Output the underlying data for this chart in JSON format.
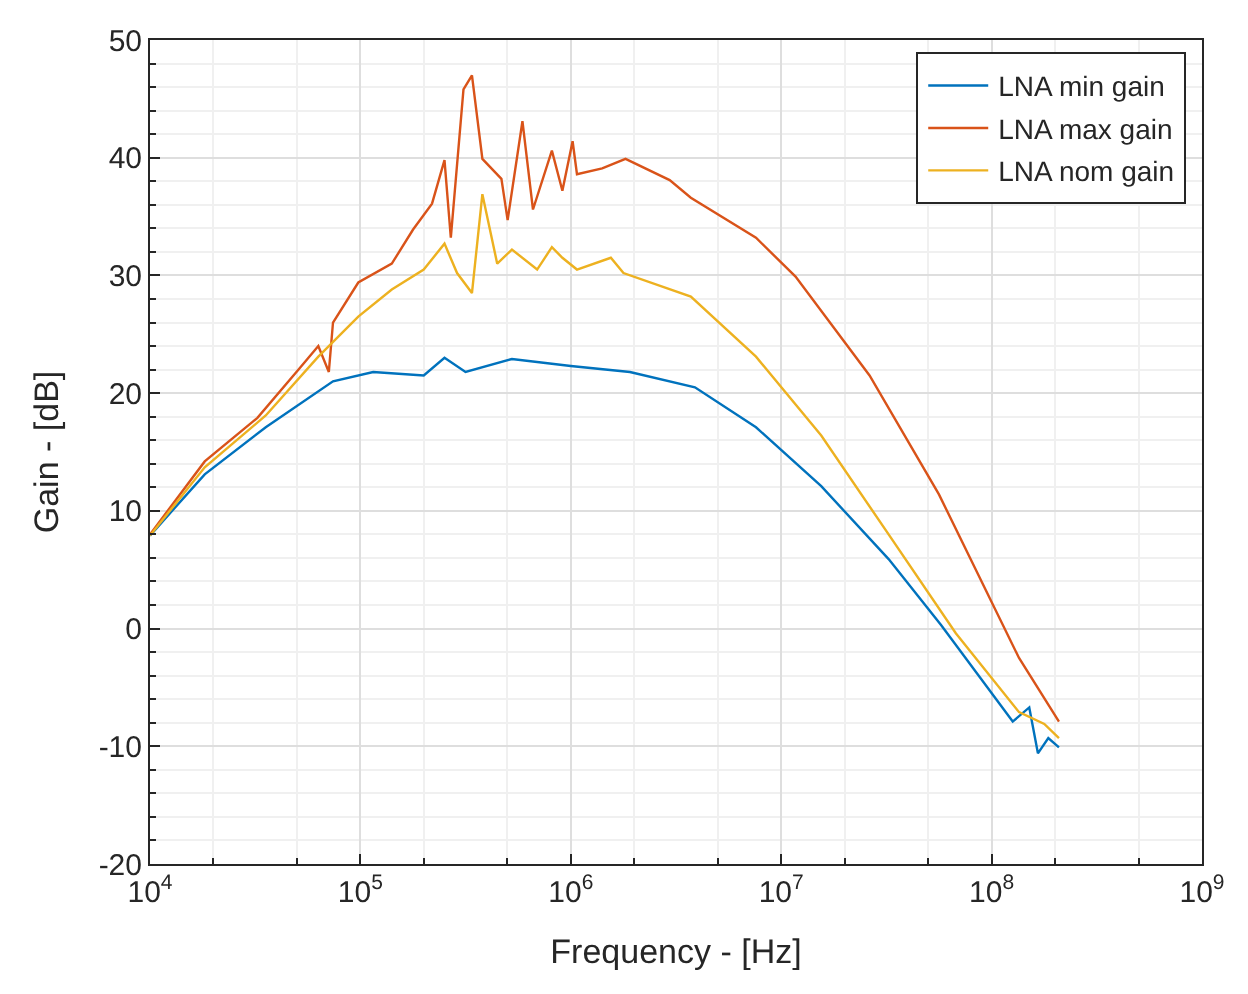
{
  "chart_data": {
    "type": "line",
    "xlabel": "Frequency - [Hz]",
    "ylabel": "Gain - [dB]",
    "log": "x",
    "xlim": [
      10000,
      1000000000
    ],
    "xticks": [
      {
        "value": 10000,
        "label": "10$^{4}$"
      },
      {
        "value": 100000,
        "label": "10$^{5}$"
      },
      {
        "value": 1000000,
        "label": "10$^{6}$"
      },
      {
        "value": 10000000,
        "label": "10$^{7}$"
      },
      {
        "value": 100000000,
        "label": "10$^{8}$"
      },
      {
        "value": 1000000000,
        "label": "10$^{9}$"
      }
    ],
    "ylim": [
      -20,
      50
    ],
    "yticks": [
      -20,
      -10,
      0,
      10,
      20,
      30,
      40,
      50
    ],
    "grid": true,
    "legend": "top right",
    "marker": "none",
    "line_style": "solid",
    "series": [
      {
        "name": "LNA min gain",
        "color": "#0072bd",
        "x": [
          10000,
          18200,
          35500,
          74100,
          115000,
          200000,
          251000,
          316000,
          525000,
          1000000,
          1910000,
          3890000,
          7590000,
          15500000,
          32400000,
          57500000,
          126000000,
          151000000,
          166000000,
          186000000,
          209000000
        ],
        "values": [
          7.9,
          13.1,
          17.1,
          21.0,
          21.8,
          21.5,
          23.0,
          21.8,
          22.9,
          22.3,
          21.8,
          20.5,
          17.1,
          12.1,
          5.9,
          0.3,
          -7.9,
          -6.7,
          -10.6,
          -9.3,
          -10.1
        ]
      },
      {
        "name": "LNA max gain",
        "color": "#d95319",
        "x": [
          10000,
          18200,
          32400,
          51300,
          63100,
          70800,
          74100,
          97700,
          141000,
          178000,
          219000,
          251000,
          269000,
          309000,
          339000,
          380000,
          468000,
          501000,
          589000,
          661000,
          813000,
          912000,
          1020000,
          1070000,
          1410000,
          1820000,
          2950000,
          3720000,
          7590000,
          11700000,
          26300000,
          56200000,
          135000000,
          209000000
        ],
        "values": [
          8.0,
          14.2,
          17.9,
          22.1,
          24.0,
          21.8,
          26.0,
          29.4,
          31.0,
          33.9,
          36.1,
          39.8,
          33.2,
          45.8,
          47.0,
          39.9,
          38.2,
          34.7,
          43.1,
          35.6,
          40.6,
          37.2,
          41.4,
          38.6,
          39.1,
          39.9,
          38.1,
          36.6,
          33.2,
          29.9,
          21.5,
          11.4,
          -2.5,
          -7.9
        ]
      },
      {
        "name": "LNA nom gain",
        "color": "#edb120",
        "x": [
          10000,
          18200,
          35500,
          63100,
          97700,
          141000,
          200000,
          251000,
          288000,
          339000,
          380000,
          447000,
          525000,
          692000,
          813000,
          912000,
          1070000,
          1550000,
          1780000,
          3720000,
          7590000,
          15500000,
          32400000,
          67600000,
          135000000,
          178000000,
          209000000
        ],
        "values": [
          7.9,
          13.7,
          18.1,
          23.1,
          26.5,
          28.8,
          30.5,
          32.7,
          30.2,
          28.5,
          36.9,
          31.0,
          32.2,
          30.5,
          32.4,
          31.5,
          30.5,
          31.5,
          30.2,
          28.2,
          23.1,
          16.4,
          8.0,
          -0.4,
          -7.1,
          -8.1,
          -9.3
        ]
      }
    ]
  }
}
